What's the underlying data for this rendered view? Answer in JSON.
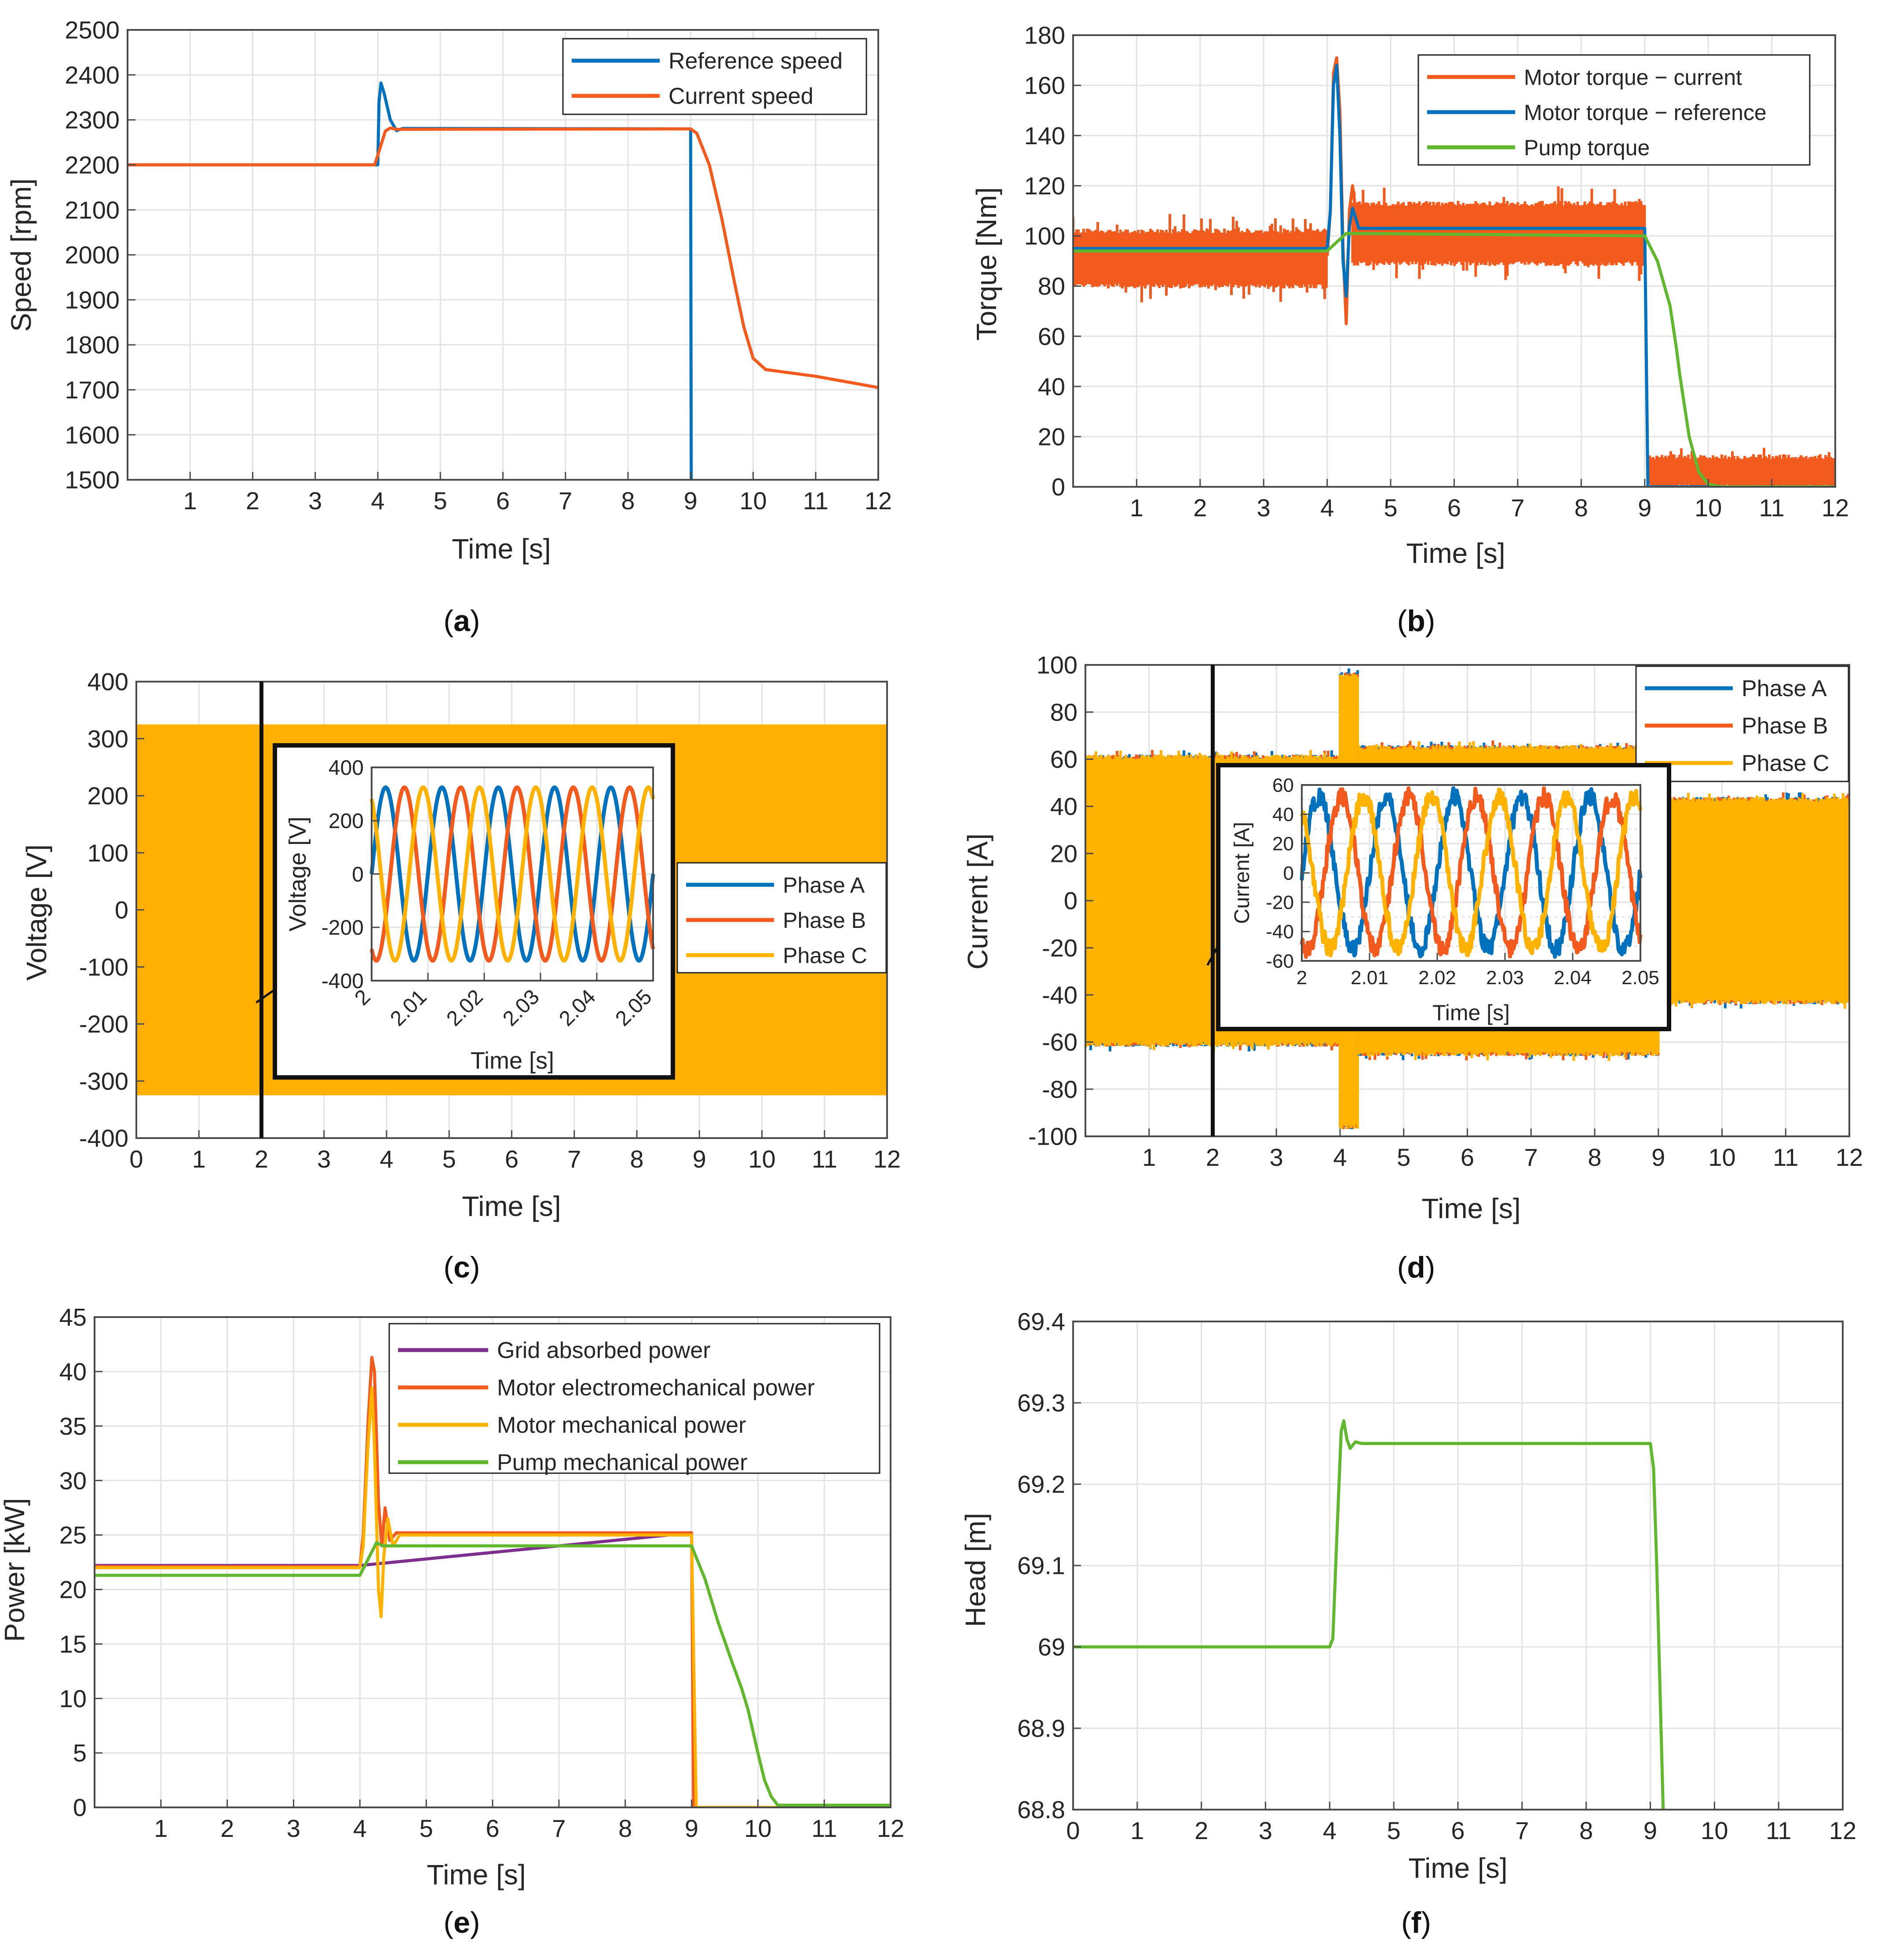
{
  "colors": {
    "blue": "#0072BD",
    "orange": "#F25A1E",
    "yellow": "#FFB300",
    "green": "#61B82E",
    "purple": "#7E2F8E",
    "grid": "#e3e3e3",
    "axis": "#4a4a4a",
    "fill": "#FFB000"
  },
  "chart_data": [
    {
      "id": "a",
      "type": "line",
      "panel_label": "a",
      "xlabel": "Time [s]",
      "ylabel": "Speed [rpm]",
      "xlim": [
        0,
        12
      ],
      "ylim": [
        1500,
        2500
      ],
      "xticks": [
        1,
        2,
        3,
        4,
        5,
        6,
        7,
        8,
        9,
        10,
        11,
        12
      ],
      "yticks": [
        1500,
        1600,
        1700,
        1800,
        1900,
        2000,
        2100,
        2200,
        2300,
        2400,
        2500
      ],
      "legend": [
        "Reference speed",
        "Current speed"
      ],
      "series": [
        {
          "name": "Reference speed",
          "color": "blue",
          "points": [
            [
              0,
              2200
            ],
            [
              4,
              2200
            ],
            [
              4.02,
              2340
            ],
            [
              4.05,
              2382
            ],
            [
              4.1,
              2360
            ],
            [
              4.2,
              2300
            ],
            [
              4.3,
              2276
            ],
            [
              4.4,
              2281
            ],
            [
              9,
              2280
            ],
            [
              9.01,
              1500
            ]
          ]
        },
        {
          "name": "Current speed",
          "color": "orange",
          "points": [
            [
              0,
              2200
            ],
            [
              3.95,
              2200
            ],
            [
              4.02,
              2230
            ],
            [
              4.12,
              2275
            ],
            [
              4.2,
              2282
            ],
            [
              4.3,
              2279
            ],
            [
              9,
              2280
            ],
            [
              9.1,
              2270
            ],
            [
              9.3,
              2200
            ],
            [
              9.5,
              2080
            ],
            [
              9.7,
              1940
            ],
            [
              9.85,
              1840
            ],
            [
              10,
              1770
            ],
            [
              10.2,
              1745
            ],
            [
              11,
              1730
            ],
            [
              12,
              1705
            ]
          ]
        }
      ]
    },
    {
      "id": "b",
      "type": "line",
      "panel_label": "b",
      "xlabel": "Time [s]",
      "ylabel": "Torque [Nm]",
      "xlim": [
        0,
        12
      ],
      "ylim": [
        0,
        180
      ],
      "xticks": [
        1,
        2,
        3,
        4,
        5,
        6,
        7,
        8,
        9,
        10,
        11,
        12
      ],
      "yticks": [
        0,
        20,
        40,
        60,
        80,
        100,
        120,
        140,
        160,
        180
      ],
      "legend": [
        "Motor torque − current",
        "Motor torque − reference",
        "Pump torque"
      ],
      "noise_bands": [
        {
          "color": "orange",
          "x": [
            0,
            4
          ],
          "center": 91,
          "half": 10,
          "spike": 8
        },
        {
          "color": "orange",
          "x": [
            4.4,
            9
          ],
          "center": 101,
          "half": 11,
          "spike": 8
        },
        {
          "color": "orange",
          "x": [
            9.05,
            12
          ],
          "center": 6,
          "half": 5,
          "spike": 5
        }
      ],
      "series": [
        {
          "name": "Motor torque − current",
          "color": "orange",
          "points": [
            [
              4,
              92
            ],
            [
              4.05,
              110
            ],
            [
              4.1,
              165
            ],
            [
              4.15,
              171
            ],
            [
              4.2,
              150
            ],
            [
              4.25,
              95
            ],
            [
              4.3,
              65
            ],
            [
              4.35,
              110
            ],
            [
              4.4,
              120
            ],
            [
              4.5,
              100
            ]
          ]
        },
        {
          "name": "Motor torque − reference",
          "color": "blue",
          "points": [
            [
              0,
              95
            ],
            [
              4,
              95
            ],
            [
              4.05,
              110
            ],
            [
              4.1,
              160
            ],
            [
              4.15,
              168
            ],
            [
              4.2,
              140
            ],
            [
              4.25,
              90
            ],
            [
              4.3,
              76
            ],
            [
              4.35,
              104
            ],
            [
              4.4,
              111
            ],
            [
              4.5,
              103
            ],
            [
              9,
              103
            ],
            [
              9.05,
              0
            ],
            [
              12,
              0
            ]
          ]
        },
        {
          "name": "Pump torque",
          "color": "green",
          "points": [
            [
              0,
              94
            ],
            [
              4,
              94
            ],
            [
              4.3,
              101
            ],
            [
              9,
              100
            ],
            [
              9.2,
              90
            ],
            [
              9.4,
              72
            ],
            [
              9.5,
              55
            ],
            [
              9.55,
              45
            ],
            [
              9.7,
              20
            ],
            [
              9.85,
              6
            ],
            [
              10,
              1
            ],
            [
              10.2,
              0
            ],
            [
              12,
              0
            ]
          ]
        }
      ]
    },
    {
      "id": "c",
      "type": "line",
      "panel_label": "c",
      "xlabel": "Time [s]",
      "ylabel": "Voltage [V]",
      "xlim": [
        0,
        12
      ],
      "ylim": [
        -400,
        400
      ],
      "xticks": [
        0,
        1,
        2,
        3,
        4,
        5,
        6,
        7,
        8,
        9,
        10,
        11,
        12
      ],
      "yticks": [
        -400,
        -300,
        -200,
        -100,
        0,
        100,
        200,
        300,
        400
      ],
      "legend": [
        "Phase A",
        "Phase B",
        "Phase C"
      ],
      "band": {
        "x": [
          0,
          12
        ],
        "y": [
          -325,
          325
        ]
      },
      "inset": {
        "xlabel": "Time [s]",
        "ylabel": "Voltage [V]",
        "xlim": [
          2,
          2.05
        ],
        "ylim": [
          -400,
          400
        ],
        "xticks": [
          2,
          2.01,
          2.02,
          2.03,
          2.04,
          2.05
        ],
        "xtick_labels": [
          "2",
          "2.01",
          "2.02",
          "2.03",
          "2.04",
          "2.05"
        ],
        "yticks": [
          -400,
          -200,
          0,
          200,
          400
        ],
        "amplitude": 325,
        "frequency_hz": 100,
        "phases_deg": [
          0,
          -120,
          120
        ]
      }
    },
    {
      "id": "d",
      "type": "line",
      "panel_label": "d",
      "xlabel": "Time [s]",
      "ylabel": "Current [A]",
      "xlim": [
        0,
        12
      ],
      "ylim": [
        -100,
        100
      ],
      "xticks": [
        1,
        2,
        3,
        4,
        5,
        6,
        7,
        8,
        9,
        10,
        11,
        12
      ],
      "yticks": [
        -100,
        -80,
        -60,
        -40,
        -20,
        0,
        20,
        40,
        60,
        80,
        100
      ],
      "legend": [
        "Phase A",
        "Phase B",
        "Phase C"
      ],
      "bands": [
        {
          "x": [
            0,
            4
          ],
          "amp": 60
        },
        {
          "x": [
            4,
            4.3
          ],
          "amp": 95
        },
        {
          "x": [
            4.3,
            9
          ],
          "amp": 64
        },
        {
          "x": [
            9,
            12
          ],
          "amp": 42
        }
      ],
      "inset": {
        "xlabel": "Time [s]",
        "ylabel": "Current [A]",
        "xlim": [
          2,
          2.05
        ],
        "ylim": [
          -60,
          60
        ],
        "xticks": [
          2,
          2.01,
          2.02,
          2.03,
          2.04,
          2.05
        ],
        "xtick_labels": [
          "2",
          "2.01",
          "2.02",
          "2.03",
          "2.04",
          "2.05"
        ],
        "yticks": [
          -60,
          -40,
          -20,
          0,
          20,
          40,
          60
        ],
        "amplitude": 52,
        "frequency_hz": 100,
        "phases_deg": [
          0,
          -120,
          120
        ]
      }
    },
    {
      "id": "e",
      "type": "line",
      "panel_label": "e",
      "xlabel": "Time [s]",
      "ylabel": "Power [kW]",
      "xlim": [
        0,
        12
      ],
      "ylim": [
        0,
        45
      ],
      "xticks": [
        1,
        2,
        3,
        4,
        5,
        6,
        7,
        8,
        9,
        10,
        11,
        12
      ],
      "yticks": [
        0,
        5,
        10,
        15,
        20,
        25,
        30,
        35,
        40,
        45
      ],
      "legend": [
        "Grid absorbed power",
        "Motor electromechanical power",
        "Motor mechanical power",
        "Pump mechanical power"
      ],
      "series": [
        {
          "name": "Grid absorbed power",
          "color": "purple",
          "points": [
            [
              0,
              22.2
            ],
            [
              4,
              22.2
            ],
            [
              9,
              25.2
            ],
            [
              9.05,
              0
            ],
            [
              12,
              0
            ]
          ]
        },
        {
          "name": "Motor electromechanical power",
          "color": "orange",
          "points": [
            [
              0,
              22.1
            ],
            [
              4,
              22.1
            ],
            [
              4.05,
              25
            ],
            [
              4.12,
              35
            ],
            [
              4.18,
              41.3
            ],
            [
              4.22,
              40
            ],
            [
              4.28,
              28
            ],
            [
              4.33,
              24
            ],
            [
              4.38,
              27.5
            ],
            [
              4.45,
              24.5
            ],
            [
              4.55,
              25.2
            ],
            [
              9,
              25.2
            ],
            [
              9.03,
              0
            ]
          ]
        },
        {
          "name": "Motor mechanical power",
          "color": "yellow",
          "points": [
            [
              0,
              22
            ],
            [
              4,
              22
            ],
            [
              4.05,
              24
            ],
            [
              4.12,
              33
            ],
            [
              4.18,
              38.5
            ],
            [
              4.22,
              33
            ],
            [
              4.28,
              20
            ],
            [
              4.32,
              17.5
            ],
            [
              4.36,
              23
            ],
            [
              4.42,
              26.5
            ],
            [
              4.5,
              24
            ],
            [
              4.6,
              25
            ],
            [
              9,
              25
            ],
            [
              9.07,
              0
            ],
            [
              12,
              0
            ]
          ]
        },
        {
          "name": "Pump mechanical power",
          "color": "green",
          "points": [
            [
              0,
              21.3
            ],
            [
              4,
              21.3
            ],
            [
              4.1,
              22.5
            ],
            [
              4.25,
              24.3
            ],
            [
              4.35,
              24
            ],
            [
              9,
              24
            ],
            [
              9.2,
              21
            ],
            [
              9.4,
              17
            ],
            [
              9.6,
              13.5
            ],
            [
              9.75,
              11
            ],
            [
              9.85,
              9
            ],
            [
              10,
              5
            ],
            [
              10.1,
              2.5
            ],
            [
              10.2,
              1
            ],
            [
              10.3,
              0.2
            ],
            [
              12,
              0.2
            ]
          ]
        }
      ]
    },
    {
      "id": "f",
      "type": "line",
      "panel_label": "f",
      "xlabel": "Time [s]",
      "ylabel": "Head [m]",
      "xlim": [
        0,
        12
      ],
      "ylim": [
        68.8,
        69.4
      ],
      "xticks": [
        0,
        1,
        2,
        3,
        4,
        5,
        6,
        7,
        8,
        9,
        10,
        11,
        12
      ],
      "yticks": [
        68.8,
        68.9,
        69,
        69.1,
        69.2,
        69.3,
        69.4
      ],
      "legend": [],
      "series": [
        {
          "name": "Head",
          "color": "green",
          "points": [
            [
              0,
              69
            ],
            [
              4,
              69
            ],
            [
              4.05,
              69.01
            ],
            [
              4.12,
              69.15
            ],
            [
              4.18,
              69.265
            ],
            [
              4.22,
              69.278
            ],
            [
              4.27,
              69.255
            ],
            [
              4.32,
              69.244
            ],
            [
              4.4,
              69.252
            ],
            [
              4.5,
              69.25
            ],
            [
              9,
              69.25
            ],
            [
              9.05,
              69.22
            ],
            [
              9.1,
              69.1
            ],
            [
              9.15,
              68.95
            ],
            [
              9.2,
              68.8
            ]
          ]
        }
      ]
    }
  ]
}
